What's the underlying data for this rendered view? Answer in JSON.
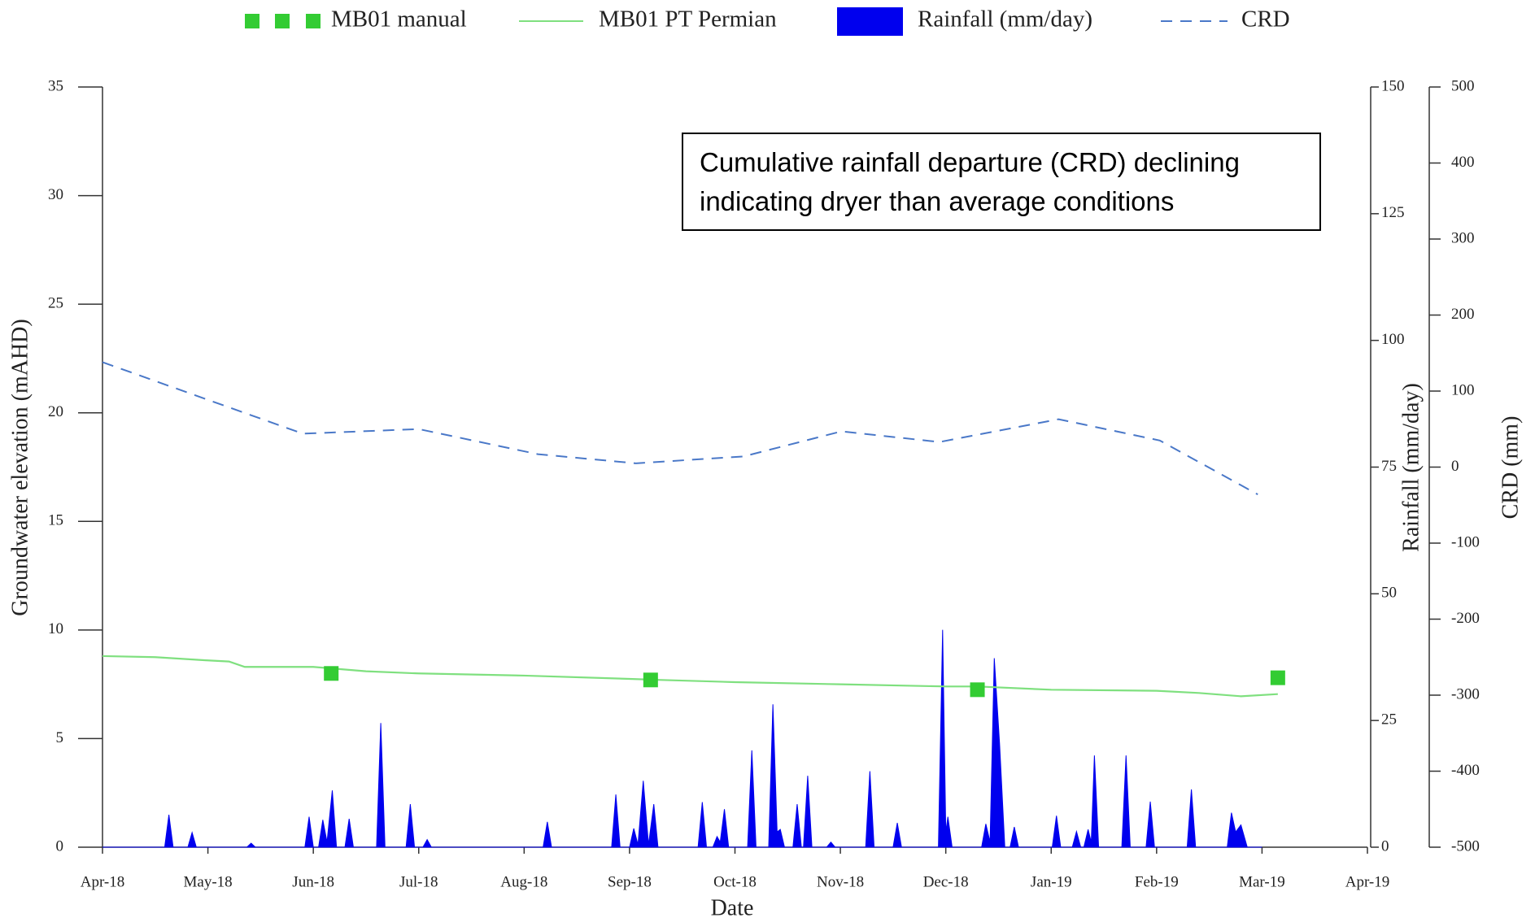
{
  "chart_data": {
    "type": "line",
    "xlabel": "Date",
    "ylabel": "Groundwater elevation (mAHD)",
    "y2label": "Rainfall (mm/day)",
    "y3label": "CRD (mm)",
    "annotation": [
      "Cumulative rainfall departure (CRD) declining",
      "indicating dryer than average conditions"
    ],
    "xlim": [
      0,
      12
    ],
    "xticks": [
      {
        "value": 0,
        "label": "Apr-18"
      },
      {
        "value": 1,
        "label": "May-18"
      },
      {
        "value": 2,
        "label": "Jun-18"
      },
      {
        "value": 3,
        "label": "Jul-18"
      },
      {
        "value": 4,
        "label": "Aug-18"
      },
      {
        "value": 5,
        "label": "Sep-18"
      },
      {
        "value": 6,
        "label": "Oct-18"
      },
      {
        "value": 7,
        "label": "Nov-18"
      },
      {
        "value": 8,
        "label": "Dec-18"
      },
      {
        "value": 9,
        "label": "Jan-19"
      },
      {
        "value": 10,
        "label": "Feb-19"
      },
      {
        "value": 11,
        "label": "Mar-19"
      },
      {
        "value": 12,
        "label": "Apr-19"
      }
    ],
    "ylim": [
      0,
      35
    ],
    "yticks": [
      0,
      5,
      10,
      15,
      20,
      25,
      30,
      35
    ],
    "y2lim": [
      0,
      150
    ],
    "y2ticks": [
      0,
      25,
      50,
      75,
      100,
      125,
      150
    ],
    "y3lim": [
      -500,
      500
    ],
    "y3ticks": [
      -500,
      -400,
      -300,
      -200,
      -100,
      0,
      100,
      200,
      300,
      400,
      500
    ],
    "series": [
      {
        "name": "MB01 manual",
        "kind": "marker",
        "color": "#33cc33",
        "x": [
          2.17,
          5.2,
          8.3,
          11.15
        ],
        "values": [
          8.0,
          7.7,
          7.25,
          7.8
        ]
      },
      {
        "name": "MB01 PT Permian",
        "kind": "line",
        "color": "#7fe07f",
        "x": [
          0,
          0.5,
          1,
          1.2,
          1.35,
          2,
          2.5,
          3,
          4,
          5,
          5.3,
          6,
          7,
          8,
          8.3,
          9,
          10,
          10.4,
          10.8,
          11.15
        ],
        "values": [
          8.8,
          8.75,
          8.6,
          8.55,
          8.3,
          8.3,
          8.1,
          8.0,
          7.9,
          7.75,
          7.7,
          7.6,
          7.5,
          7.4,
          7.4,
          7.25,
          7.2,
          7.1,
          6.95,
          7.05
        ]
      },
      {
        "name": "Rainfall (mm/day)",
        "kind": "area",
        "axis": "y2",
        "color": "#0000ee",
        "x": [
          0,
          0.59,
          0.63,
          0.67,
          0.81,
          0.85,
          0.89,
          1.37,
          1.41,
          1.45,
          1.92,
          1.96,
          2.0,
          2.05,
          2.09,
          2.13,
          2.18,
          2.22,
          2.3,
          2.34,
          2.38,
          2.6,
          2.64,
          2.68,
          2.88,
          2.92,
          2.96,
          3.04,
          3.08,
          3.12,
          4.18,
          4.22,
          4.26,
          4.83,
          4.87,
          4.91,
          5.0,
          5.04,
          5.08,
          5.13,
          5.18,
          5.23,
          5.27,
          5.65,
          5.69,
          5.73,
          5.79,
          5.83,
          5.86,
          5.9,
          5.94,
          6.12,
          6.16,
          6.2,
          6.32,
          6.36,
          6.4,
          6.43,
          6.47,
          6.55,
          6.59,
          6.63,
          6.65,
          6.69,
          6.73,
          6.87,
          6.91,
          6.95,
          7.24,
          7.28,
          7.32,
          7.5,
          7.54,
          7.58,
          7.93,
          7.97,
          8.0,
          8.02,
          8.06,
          8.34,
          8.38,
          8.42,
          8.46,
          8.51,
          8.56,
          8.61,
          8.65,
          8.69,
          9.01,
          9.05,
          9.09,
          9.2,
          9.24,
          9.28,
          9.31,
          9.35,
          9.38,
          9.41,
          9.45,
          9.67,
          9.71,
          9.75,
          9.9,
          9.94,
          9.98,
          10.29,
          10.33,
          10.37,
          10.67,
          10.71,
          10.75,
          10.8,
          10.86,
          11.0
        ],
        "values": [
          0,
          0,
          6.4,
          0,
          0,
          2.9,
          0,
          0,
          0.8,
          0,
          0,
          6,
          0,
          0,
          5.4,
          1,
          11.2,
          0,
          0,
          5.6,
          0,
          0,
          24.5,
          0,
          0,
          8.5,
          0,
          0,
          1.5,
          0,
          0,
          5,
          0,
          0,
          10.4,
          0,
          0,
          3.7,
          0.5,
          13.1,
          0.5,
          8.5,
          0,
          0,
          8.9,
          0,
          0,
          2.1,
          1,
          7.5,
          0,
          0,
          19.1,
          0,
          0,
          28.2,
          3,
          3.5,
          0,
          0,
          8.5,
          0,
          0,
          14.1,
          0,
          0,
          1,
          0,
          0,
          15,
          0,
          0,
          4.8,
          0,
          0,
          42.9,
          3,
          6,
          0,
          0,
          4.6,
          1,
          37.3,
          20.5,
          0,
          0,
          4,
          0,
          0,
          6.2,
          0,
          0,
          3.1,
          0,
          0,
          3.5,
          1,
          18.1,
          0,
          0,
          18.1,
          0,
          0,
          9,
          0,
          0,
          11.4,
          0,
          0,
          6.8,
          3,
          4.4,
          0,
          0
        ]
      },
      {
        "name": "CRD",
        "kind": "dashed",
        "axis": "y3",
        "color": "#4a78c8",
        "x": [
          0,
          1.9,
          3.0,
          4.13,
          5.06,
          6.08,
          7.01,
          7.94,
          9.07,
          10.03,
          10.96
        ],
        "values": [
          138,
          44,
          50,
          17,
          5,
          14,
          47,
          33,
          63,
          35,
          -36
        ]
      }
    ]
  }
}
